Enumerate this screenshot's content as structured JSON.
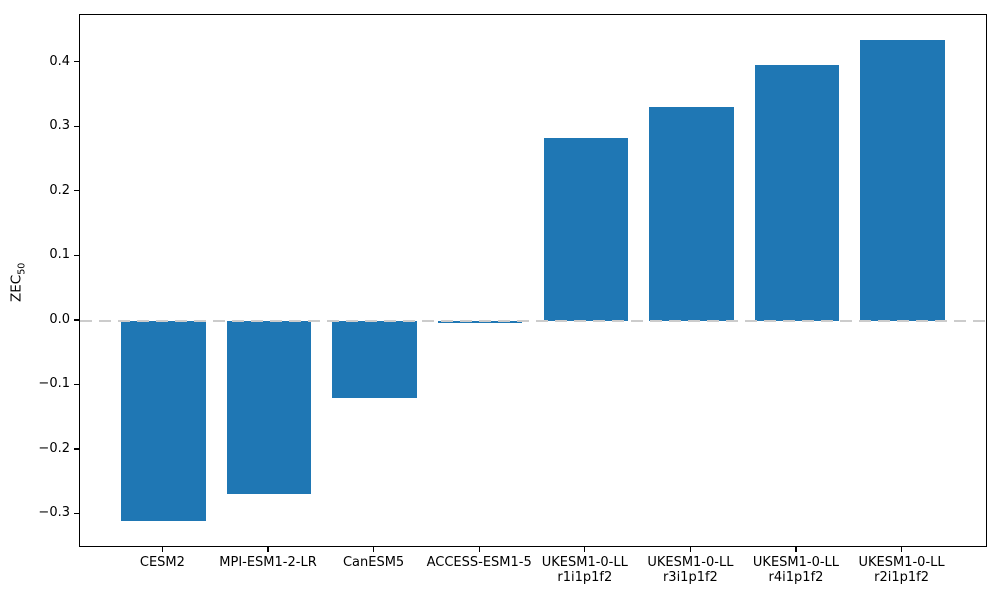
{
  "chart_data": {
    "type": "bar",
    "title": "",
    "xlabel": "",
    "ylabel": {
      "text": "ZEC",
      "sub": "50"
    },
    "bar_color": "#1f77b4",
    "ylim": [
      -0.349,
      0.474
    ],
    "xlim": [
      -0.79,
      7.79
    ],
    "bar_rel_width": 0.8,
    "grid": "off",
    "legend": "none",
    "zero_line": {
      "value": 0.0,
      "style": "dashed",
      "color": "#cccccc"
    },
    "categories": [
      {
        "lines": [
          "CESM2"
        ]
      },
      {
        "lines": [
          "MPI-ESM1-2-LR"
        ]
      },
      {
        "lines": [
          "CanESM5"
        ]
      },
      {
        "lines": [
          "ACCESS-ESM1-5"
        ]
      },
      {
        "lines": [
          "UKESM1-0-LL",
          "r1i1p1f2"
        ]
      },
      {
        "lines": [
          "UKESM1-0-LL",
          "r3i1p1f2"
        ]
      },
      {
        "lines": [
          "UKESM1-0-LL",
          "r4i1p1f2"
        ]
      },
      {
        "lines": [
          "UKESM1-0-LL",
          "r2i1p1f2"
        ]
      }
    ],
    "values": [
      -0.31,
      -0.268,
      -0.119,
      -0.003,
      0.284,
      0.332,
      0.397,
      0.436
    ],
    "yticks": [
      {
        "label": "0.4",
        "value": 0.4
      },
      {
        "label": "0.3",
        "value": 0.3
      },
      {
        "label": "0.2",
        "value": 0.2
      },
      {
        "label": "0.1",
        "value": 0.1
      },
      {
        "label": "0.0",
        "value": 0.0
      },
      {
        "label": "−0.1",
        "value": -0.1
      },
      {
        "label": "−0.2",
        "value": -0.2
      },
      {
        "label": "−0.3",
        "value": -0.3
      }
    ]
  }
}
